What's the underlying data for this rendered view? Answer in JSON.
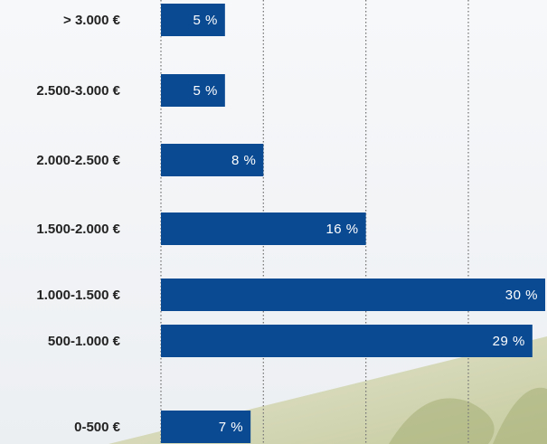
{
  "chart_data": {
    "type": "bar",
    "orientation": "horizontal",
    "categories": [
      "> 3.000 €",
      "2.500-3.000 €",
      "2.000-2.500 €",
      "1.500-2.000 €",
      "1.000-1.500 €",
      "500-1.000 €",
      "0-500 €"
    ],
    "values": [
      5,
      5,
      8,
      16,
      30,
      29,
      7
    ],
    "value_labels": [
      "5 %",
      "5 %",
      "8 %",
      "16 %",
      "30 %",
      "29 %",
      "7 %"
    ],
    "color": "#0a4a92",
    "xlim": [
      0,
      30
    ],
    "xticks": [
      0,
      8,
      16,
      24
    ],
    "grid": true
  }
}
